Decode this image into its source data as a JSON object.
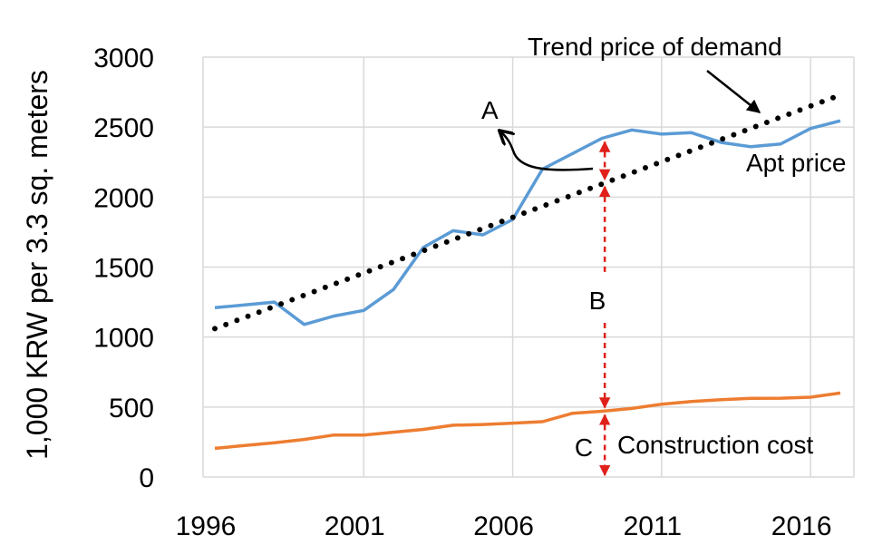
{
  "chart_data": {
    "type": "line",
    "title": "",
    "xlabel": "",
    "ylabel": "1,000 KRW per 3.3 sq. meters",
    "xlim": [
      1996,
      2017
    ],
    "ylim": [
      0,
      3000
    ],
    "x_ticks": [
      1996,
      2001,
      2006,
      2011,
      2016
    ],
    "x_tick_labels": [
      "1996",
      "2001",
      "2006",
      "2011",
      "2016"
    ],
    "y_ticks": [
      0,
      500,
      1000,
      1500,
      2000,
      2500,
      3000
    ],
    "y_tick_labels": [
      "0",
      "500",
      "1000",
      "1500",
      "2000",
      "2500",
      "3000"
    ],
    "grid": true,
    "x": [
      1996,
      1997,
      1998,
      1999,
      2000,
      2001,
      2002,
      2003,
      2004,
      2005,
      2006,
      2007,
      2008,
      2009,
      2010,
      2011,
      2012,
      2013,
      2014,
      2015,
      2016,
      2017
    ],
    "series": [
      {
        "name": "Apt price",
        "color": "#5b9bd5",
        "values": [
          1210,
          1230,
          1250,
          1090,
          1150,
          1190,
          1340,
          1640,
          1760,
          1730,
          1840,
          2200,
          2310,
          2420,
          2480,
          2450,
          2460,
          2390,
          2360,
          2380,
          2490,
          2545
        ]
      },
      {
        "name": "Construction cost",
        "color": "#ed7d31",
        "values": [
          205,
          225,
          245,
          268,
          300,
          300,
          320,
          340,
          370,
          375,
          385,
          395,
          455,
          470,
          490,
          520,
          540,
          552,
          562,
          563,
          570,
          600
        ]
      },
      {
        "name": "Trend price of demand",
        "color": "#000000",
        "style": "dotted",
        "x": [
          1996,
          2017
        ],
        "values": [
          1060,
          2730
        ]
      }
    ],
    "annotations": {
      "trend_label": "Trend price of demand",
      "apt_label": "Apt price",
      "construction_label": "Construction cost",
      "a_label": "A",
      "b_label": "B",
      "c_label": "C",
      "gap_year": 2009,
      "gap_apt": 2420,
      "gap_trend": 2100,
      "gap_cost": 470
    }
  }
}
